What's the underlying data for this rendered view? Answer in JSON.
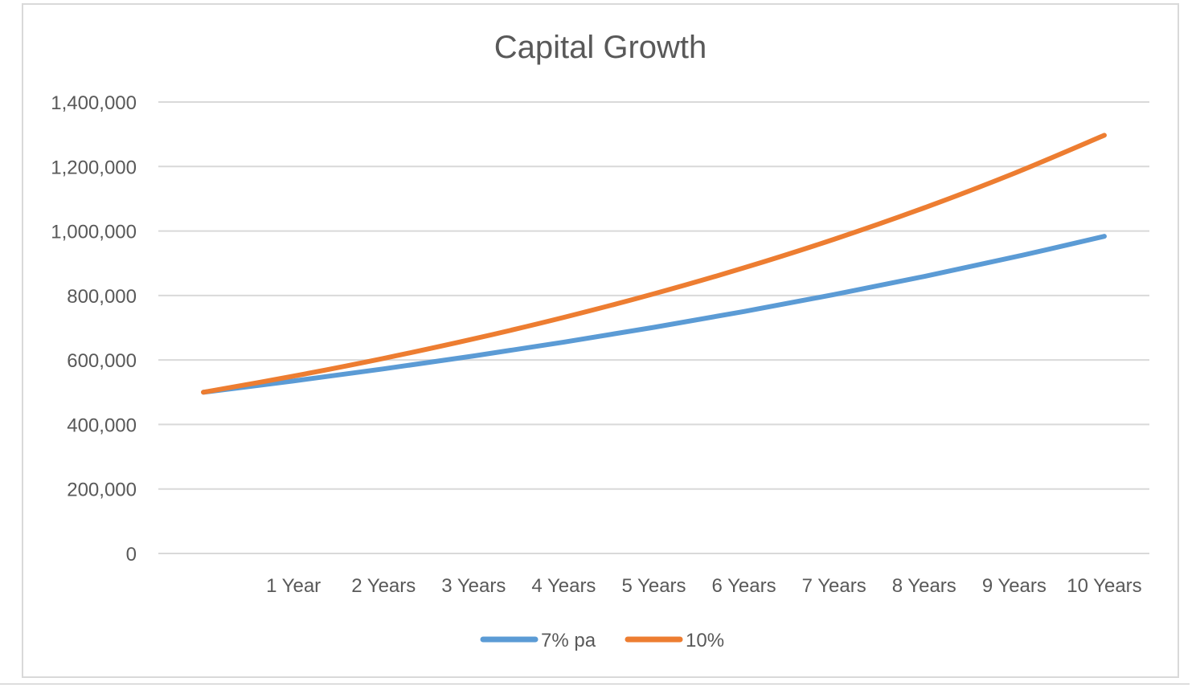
{
  "chart_data": {
    "type": "line",
    "title": "Capital Growth",
    "xlabel": "",
    "ylabel": "",
    "categories": [
      "",
      "1 Year",
      "2 Years",
      "3 Years",
      "4 Years",
      "5 Years",
      "6 Years",
      "7 Years",
      "8 Years",
      "9 Years",
      "10 Years"
    ],
    "y_ticks": [
      "0",
      "200,000",
      "400,000",
      "600,000",
      "800,000",
      "1,000,000",
      "1,200,000",
      "1,400,000"
    ],
    "ylim": [
      0,
      1400000
    ],
    "grid": true,
    "legend_position": "bottom",
    "series": [
      {
        "name": "7% pa",
        "color": "#5b9bd5",
        "values": [
          500000,
          535000,
          572450,
          612522,
          655398,
          701276,
          750365,
          802891,
          859093,
          919230,
          983576
        ]
      },
      {
        "name": "10%",
        "color": "#ed7d31",
        "values": [
          500000,
          550000,
          605000,
          665500,
          732050,
          805255,
          885781,
          974359,
          1071794,
          1178974,
          1296871
        ]
      }
    ]
  }
}
